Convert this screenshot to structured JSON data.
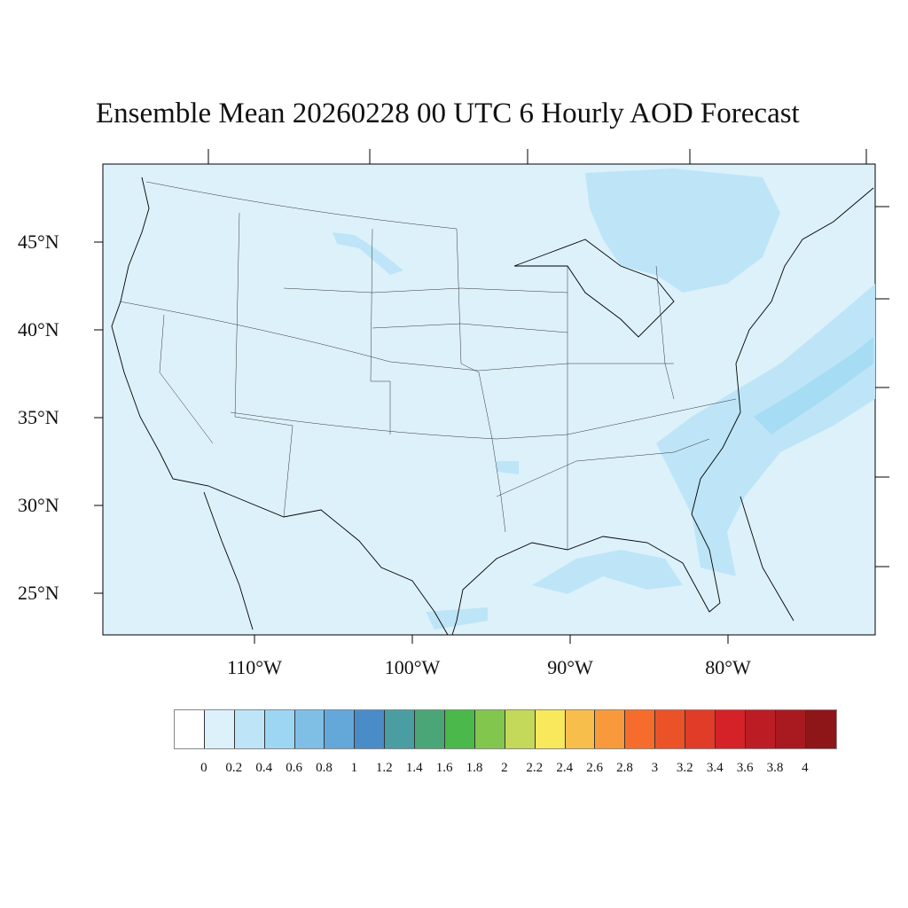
{
  "title": "Ensemble Mean 20260228 00 UTC 6 Hourly AOD Forecast",
  "map": {
    "background_color": "#ddf1fb",
    "plume_color": "#bde5f7",
    "plume_dark_color": "#a6dcf4",
    "lat_labels": [
      "45°N",
      "40°N",
      "35°N",
      "30°N",
      "25°N"
    ],
    "lon_labels": [
      "110°W",
      "100°W",
      "90°W",
      "80°W"
    ]
  },
  "colorbar": {
    "labels": [
      "0",
      "0.2",
      "0.4",
      "0.6",
      "0.8",
      "1",
      "1.2",
      "1.4",
      "1.6",
      "1.8",
      "2",
      "2.2",
      "2.4",
      "2.6",
      "2.8",
      "3",
      "3.2",
      "3.4",
      "3.6",
      "3.8",
      "4"
    ],
    "colors": [
      "#ffffff",
      "#ddf1fb",
      "#bde5f7",
      "#9dd6f3",
      "#7fbfe6",
      "#64a8da",
      "#4a8cc8",
      "#4a9da0",
      "#4aa676",
      "#4ab84a",
      "#83c64e",
      "#c4d85a",
      "#f8e85c",
      "#f8be4c",
      "#f89a3c",
      "#f66c2c",
      "#ec5228",
      "#e03c28",
      "#d42228",
      "#bc1c24",
      "#a81a20",
      "#8e1618"
    ]
  }
}
